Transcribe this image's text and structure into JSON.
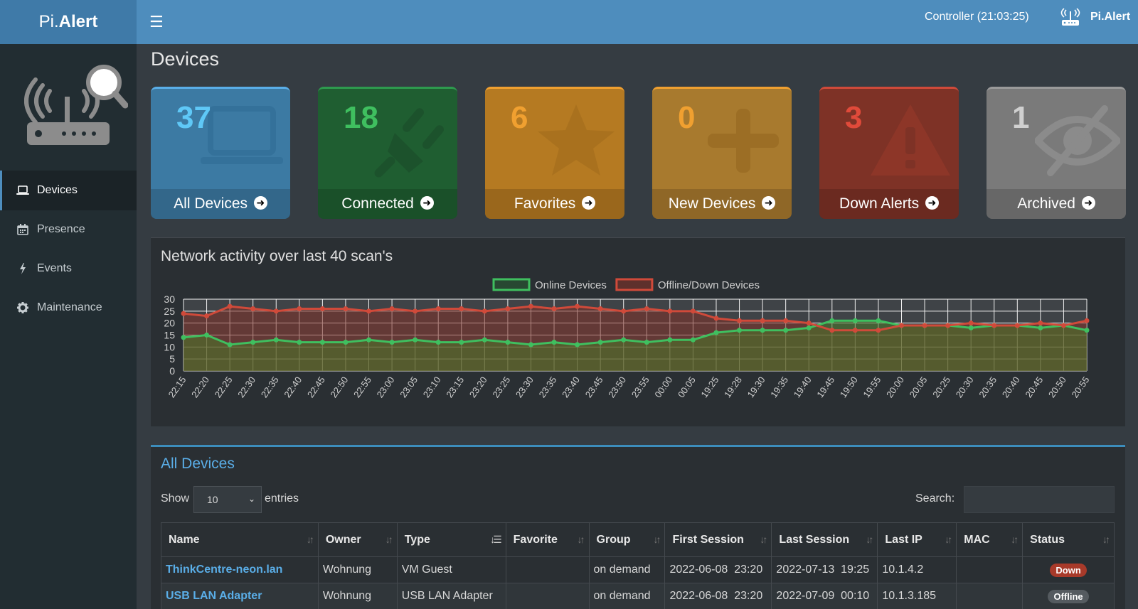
{
  "app": {
    "logo_light": "Pi.",
    "logo_bold": "Alert",
    "controller": "Controller (21:03:25)",
    "user": "Pi.Alert"
  },
  "sidebar": {
    "items": [
      {
        "label": "Devices",
        "icon": "laptop-icon",
        "active": true
      },
      {
        "label": "Presence",
        "icon": "calendar-icon",
        "active": false
      },
      {
        "label": "Events",
        "icon": "bolt-icon",
        "active": false
      },
      {
        "label": "Maintenance",
        "icon": "gear-icon",
        "active": false
      }
    ]
  },
  "page_title": "Devices",
  "tiles": [
    {
      "count": "37",
      "label": "All Devices",
      "icon": "laptop-icon",
      "color": "#3c8dbc",
      "num_color": "#5fc8f7"
    },
    {
      "count": "18",
      "label": "Connected",
      "icon": "plug-icon",
      "color": "#1f6b35",
      "num_color": "#3fbf5f"
    },
    {
      "count": "6",
      "label": "Favorites",
      "icon": "star-icon",
      "color": "#c98a25",
      "num_color": "#f0a030"
    },
    {
      "count": "0",
      "label": "New Devices",
      "icon": "plus-icon",
      "color": "#c48c2c",
      "num_color": "#f0a030"
    },
    {
      "count": "3",
      "label": "Down Alerts",
      "icon": "warning-icon",
      "color": "#8e3527",
      "num_color": "#e04a3a"
    },
    {
      "count": "1",
      "label": "Archived",
      "icon": "eye-slash-icon",
      "color": "#8a8a8a",
      "num_color": "#d0d0d0"
    }
  ],
  "chart_card_title": "Network activity over last 40 scan's",
  "chart_data": {
    "type": "area",
    "title": "",
    "legend_position": "top",
    "grid": true,
    "ylim": [
      0,
      30
    ],
    "yticks": [
      0,
      5,
      10,
      15,
      20,
      25,
      30
    ],
    "x": [
      "22:15",
      "22:20",
      "22:25",
      "22:30",
      "22:35",
      "22:40",
      "22:45",
      "22:50",
      "22:55",
      "23:00",
      "23:05",
      "23:10",
      "23:15",
      "23:20",
      "23:25",
      "23:30",
      "23:35",
      "23:40",
      "23:45",
      "23:50",
      "23:55",
      "00:00",
      "00:05",
      "19:25",
      "19:28",
      "19:30",
      "19:35",
      "19:40",
      "19:45",
      "19:50",
      "19:55",
      "20:00",
      "20:05",
      "20:25",
      "20:30",
      "20:35",
      "20:40",
      "20:45",
      "20:50",
      "20:55"
    ],
    "series": [
      {
        "name": "Online Devices",
        "color": "#3fbf5f",
        "values": [
          14,
          15,
          11,
          12,
          13,
          12,
          12,
          12,
          13,
          12,
          13,
          12,
          12,
          13,
          12,
          11,
          12,
          11,
          12,
          13,
          12,
          13,
          13,
          16,
          17,
          17,
          17,
          18,
          21,
          21,
          21,
          19,
          19,
          19,
          18,
          19,
          19,
          18,
          19,
          17
        ]
      },
      {
        "name": "Offline/Down Devices",
        "color": "#d04a3a",
        "values": [
          24,
          23,
          27,
          26,
          25,
          26,
          26,
          26,
          25,
          26,
          25,
          26,
          26,
          25,
          26,
          27,
          26,
          27,
          26,
          25,
          26,
          25,
          25,
          22,
          21,
          21,
          21,
          20,
          17,
          17,
          17,
          19,
          19,
          19,
          20,
          19,
          19,
          20,
          19,
          21
        ]
      }
    ]
  },
  "table": {
    "title": "All Devices",
    "show_label": "Show",
    "entries_value": "10",
    "entries_label": "entries",
    "search_label": "Search:",
    "columns": [
      "Name",
      "Owner",
      "Type",
      "Favorite",
      "Group",
      "First Session",
      "Last Session",
      "Last IP",
      "MAC",
      "Status"
    ],
    "rows": [
      {
        "name": "ThinkCentre-neon.lan",
        "owner": "Wohnung",
        "type": "VM Guest",
        "favorite": "",
        "group": "on demand",
        "first": "2022-06-08  23:20",
        "last": "2022-07-13  19:25",
        "ip": "10.1.4.2",
        "mac": "",
        "status": "Down"
      },
      {
        "name": "USB LAN Adapter",
        "owner": "Wohnung",
        "type": "USB LAN Adapter",
        "favorite": "",
        "group": "on demand",
        "first": "2022-06-08  23:20",
        "last": "2022-07-09  00:10",
        "ip": "10.1.3.185",
        "mac": "",
        "status": "Offline"
      }
    ]
  }
}
